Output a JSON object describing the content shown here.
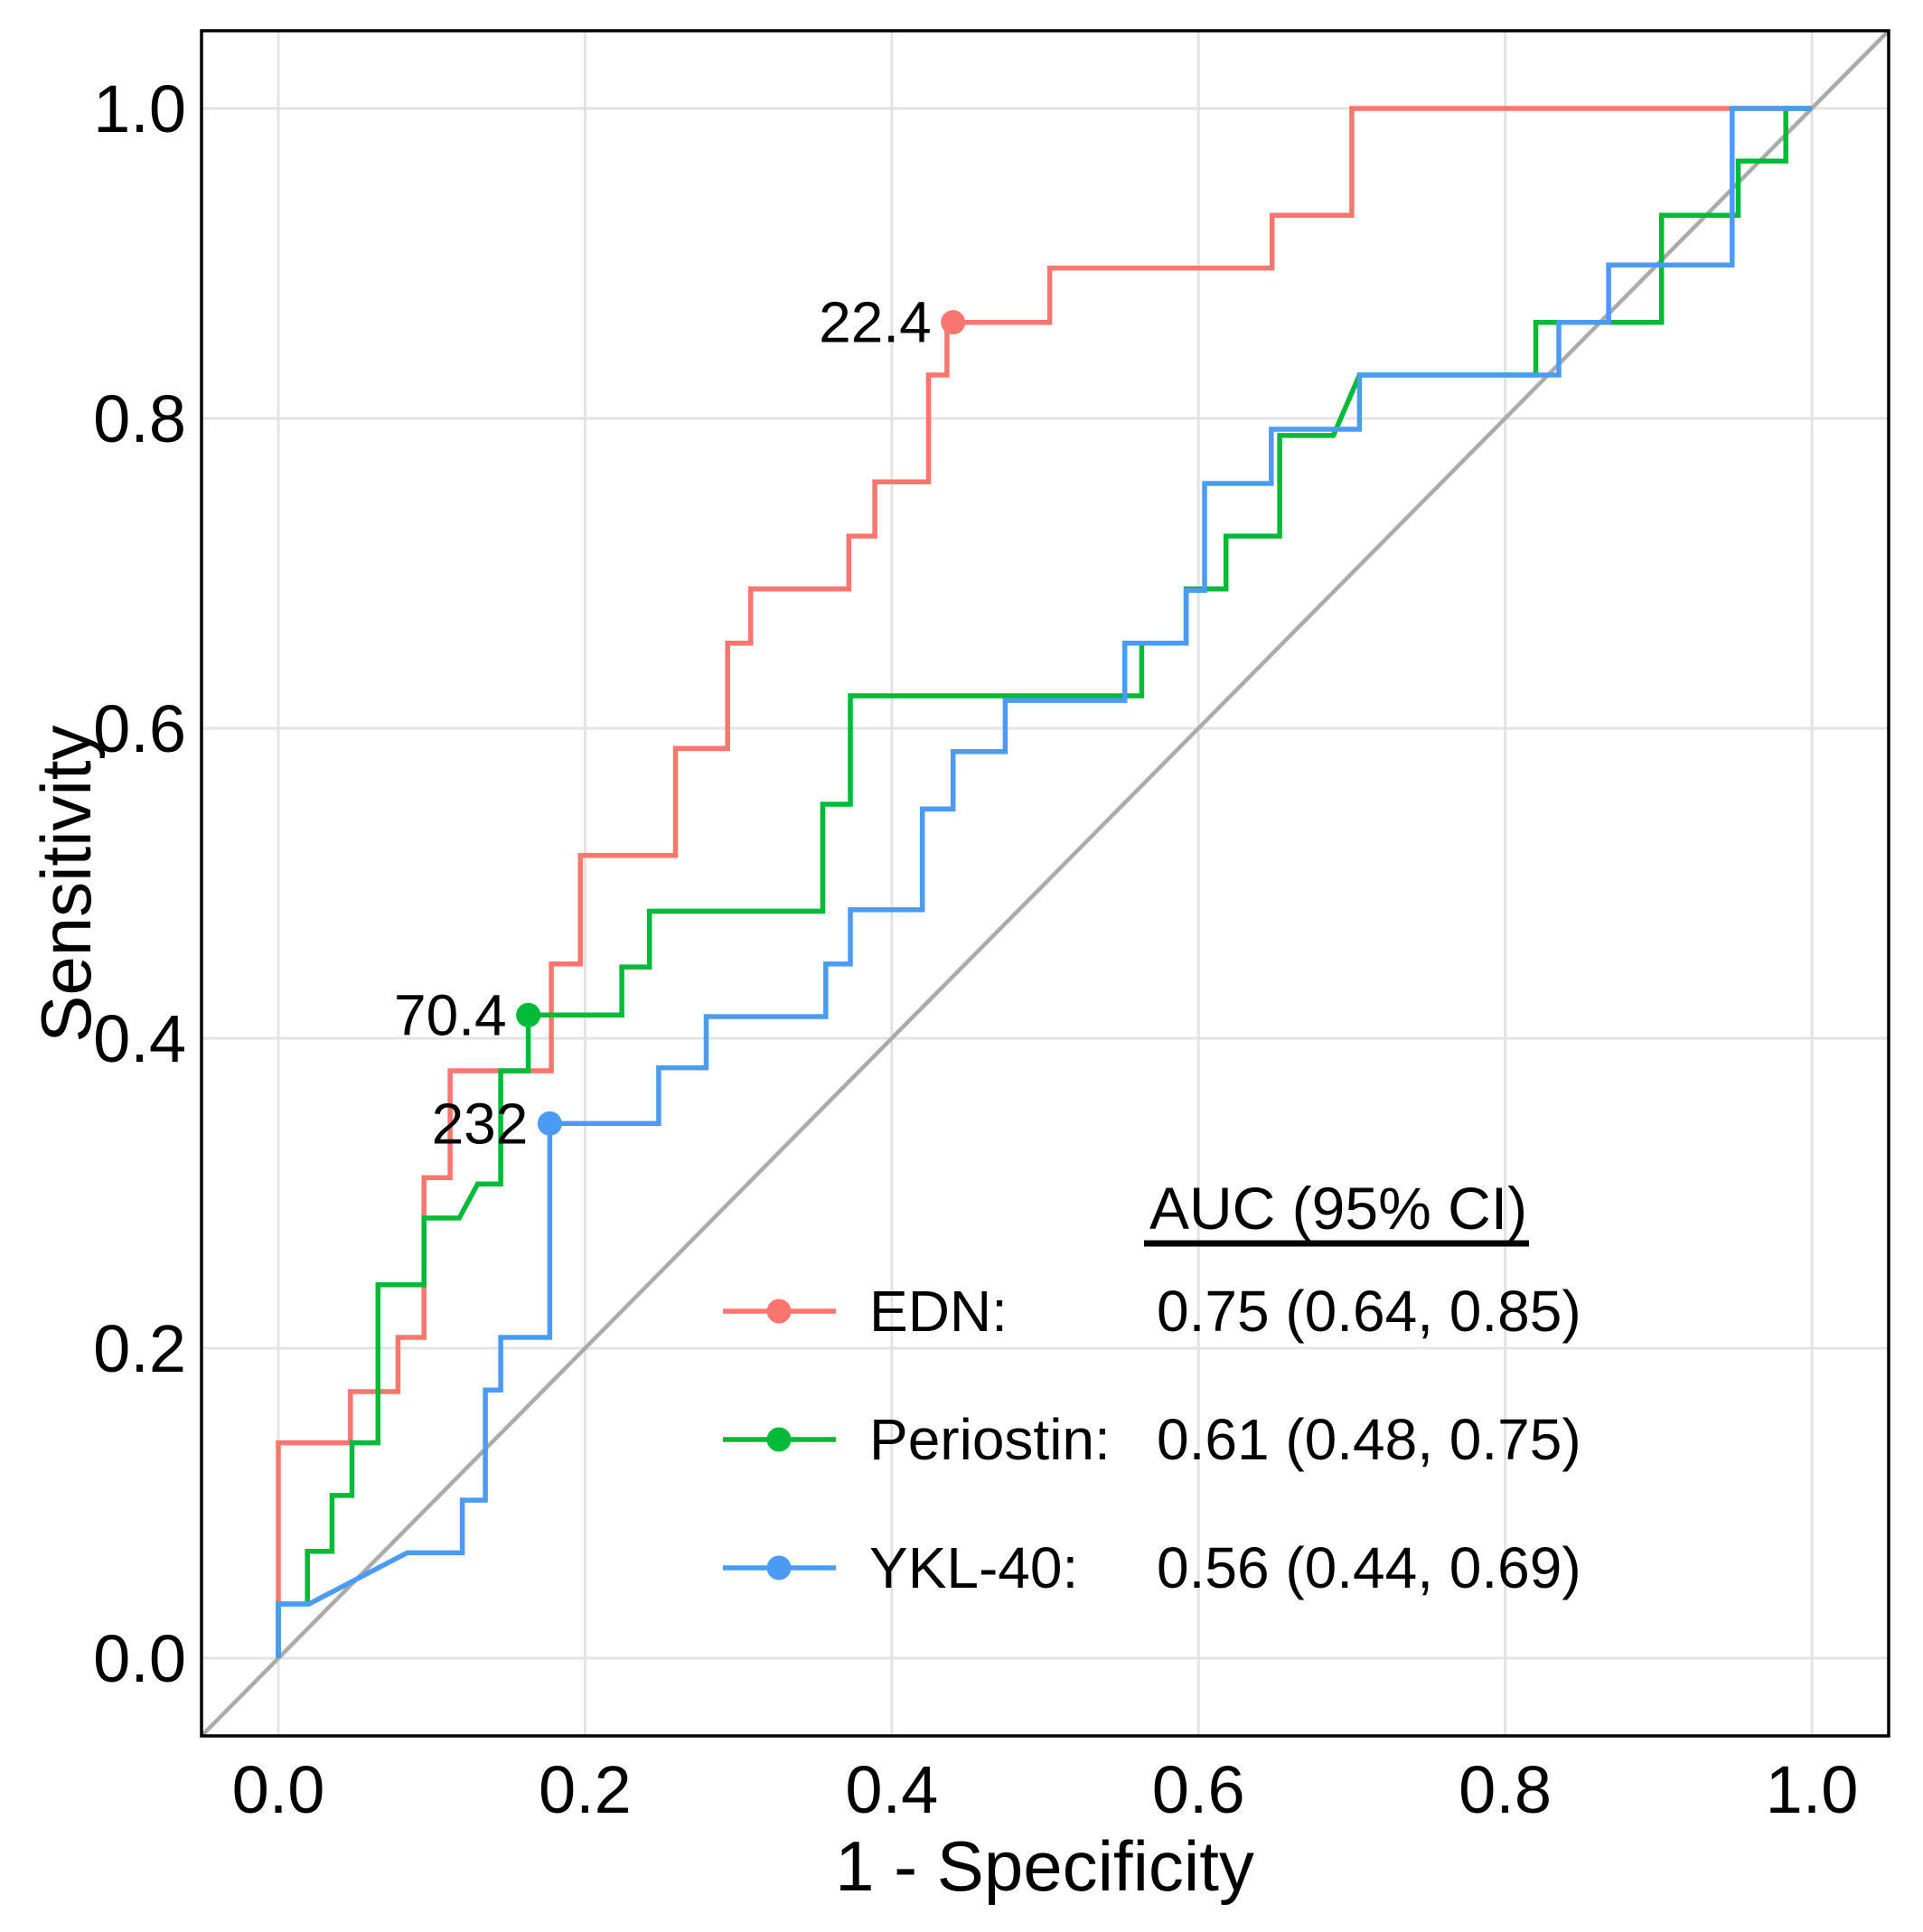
{
  "axis": {
    "x_ticks": [
      "0.0",
      "0.2",
      "0.4",
      "0.6",
      "0.8",
      "1.0"
    ],
    "y_ticks": [
      "0.0",
      "0.2",
      "0.4",
      "0.6",
      "0.8",
      "1.0"
    ],
    "x_label": "1 - Specificity",
    "y_label": "Sensitivity"
  },
  "legend": {
    "header": "AUC (95% CI)",
    "rows": [
      {
        "label": "EDN:",
        "value": "0.75 (0.64, 0.85)"
      },
      {
        "label": "Periostin:",
        "value": "0.61 (0.48, 0.75)"
      },
      {
        "label": "YKL-40:",
        "value": "0.56 (0.44, 0.69)"
      }
    ]
  },
  "chart_data": {
    "type": "line",
    "subtype": "roc-step-curves",
    "title": "",
    "xlabel": "1 - Specificity",
    "ylabel": "Sensitivity",
    "xlim": [
      0,
      1
    ],
    "ylim": [
      0,
      1
    ],
    "grid": "major-only",
    "diagonal_reference": true,
    "legend_position": "inside-bottom-right",
    "x_tick_values": [
      0,
      0.2,
      0.4,
      0.6,
      0.8,
      1.0
    ],
    "y_tick_values": [
      0,
      0.2,
      0.4,
      0.6,
      0.8,
      1.0
    ],
    "colors": {
      "diagonal": "#ABABAB",
      "grid": "#E3E3E3",
      "panel_border": "#000000",
      "background": "#FFFFFF"
    },
    "series": [
      {
        "name": "EDN",
        "color": "#F8766D",
        "auc": 0.75,
        "ci_low": 0.64,
        "ci_high": 0.85,
        "cutoff": {
          "label": "22.4",
          "x": 0.44,
          "y": 0.862
        },
        "points": [
          [
            0,
            0
          ],
          [
            0,
            0.139
          ],
          [
            0.047,
            0.139
          ],
          [
            0.047,
            0.172
          ],
          [
            0.078,
            0.172
          ],
          [
            0.078,
            0.207
          ],
          [
            0.095,
            0.207
          ],
          [
            0.095,
            0.31
          ],
          [
            0.112,
            0.31
          ],
          [
            0.112,
            0.379
          ],
          [
            0.178,
            0.379
          ],
          [
            0.178,
            0.448
          ],
          [
            0.197,
            0.448
          ],
          [
            0.197,
            0.518
          ],
          [
            0.259,
            0.518
          ],
          [
            0.259,
            0.587
          ],
          [
            0.293,
            0.587
          ],
          [
            0.293,
            0.655
          ],
          [
            0.308,
            0.655
          ],
          [
            0.308,
            0.69
          ],
          [
            0.372,
            0.69
          ],
          [
            0.372,
            0.724
          ],
          [
            0.389,
            0.724
          ],
          [
            0.389,
            0.759
          ],
          [
            0.424,
            0.759
          ],
          [
            0.424,
            0.828
          ],
          [
            0.436,
            0.828
          ],
          [
            0.436,
            0.862
          ],
          [
            0.503,
            0.862
          ],
          [
            0.503,
            0.897
          ],
          [
            0.648,
            0.897
          ],
          [
            0.648,
            0.931
          ],
          [
            0.7,
            0.931
          ],
          [
            0.7,
            1
          ],
          [
            1,
            1
          ]
        ]
      },
      {
        "name": "Periostin",
        "color": "#00BA38",
        "auc": 0.61,
        "ci_low": 0.48,
        "ci_high": 0.75,
        "cutoff": {
          "label": "70.4",
          "x": 0.163,
          "y": 0.415
        },
        "points": [
          [
            0,
            0
          ],
          [
            0,
            0.035
          ],
          [
            0.019,
            0.035
          ],
          [
            0.019,
            0.069
          ],
          [
            0.035,
            0.069
          ],
          [
            0.035,
            0.105
          ],
          [
            0.048,
            0.105
          ],
          [
            0.048,
            0.139
          ],
          [
            0.065,
            0.139
          ],
          [
            0.065,
            0.241
          ],
          [
            0.095,
            0.241
          ],
          [
            0.095,
            0.284
          ],
          [
            0.118,
            0.284
          ],
          [
            0.13,
            0.306
          ],
          [
            0.145,
            0.306
          ],
          [
            0.145,
            0.379
          ],
          [
            0.163,
            0.379
          ],
          [
            0.163,
            0.415
          ],
          [
            0.224,
            0.415
          ],
          [
            0.224,
            0.446
          ],
          [
            0.242,
            0.446
          ],
          [
            0.242,
            0.482
          ],
          [
            0.355,
            0.482
          ],
          [
            0.355,
            0.551
          ],
          [
            0.373,
            0.551
          ],
          [
            0.373,
            0.621
          ],
          [
            0.563,
            0.621
          ],
          [
            0.563,
            0.655
          ],
          [
            0.592,
            0.655
          ],
          [
            0.592,
            0.69
          ],
          [
            0.618,
            0.69
          ],
          [
            0.618,
            0.724
          ],
          [
            0.653,
            0.724
          ],
          [
            0.653,
            0.789
          ],
          [
            0.688,
            0.789
          ],
          [
            0.705,
            0.828
          ],
          [
            0.82,
            0.828
          ],
          [
            0.82,
            0.862
          ],
          [
            0.902,
            0.862
          ],
          [
            0.902,
            0.931
          ],
          [
            0.952,
            0.931
          ],
          [
            0.952,
            0.966
          ],
          [
            0.983,
            0.966
          ],
          [
            0.983,
            1
          ],
          [
            1,
            1
          ]
        ]
      },
      {
        "name": "YKL-40",
        "color": "#4B9BF5",
        "auc": 0.56,
        "ci_low": 0.44,
        "ci_high": 0.69,
        "cutoff": {
          "label": "232",
          "x": 0.177,
          "y": 0.345
        },
        "points": [
          [
            0,
            0
          ],
          [
            0,
            0.035
          ],
          [
            0.02,
            0.035
          ],
          [
            0.084,
            0.068
          ],
          [
            0.12,
            0.068
          ],
          [
            0.12,
            0.102
          ],
          [
            0.135,
            0.102
          ],
          [
            0.135,
            0.173
          ],
          [
            0.145,
            0.173
          ],
          [
            0.145,
            0.207
          ],
          [
            0.177,
            0.207
          ],
          [
            0.177,
            0.345
          ],
          [
            0.248,
            0.345
          ],
          [
            0.248,
            0.381
          ],
          [
            0.279,
            0.381
          ],
          [
            0.279,
            0.414
          ],
          [
            0.357,
            0.414
          ],
          [
            0.357,
            0.448
          ],
          [
            0.373,
            0.448
          ],
          [
            0.373,
            0.483
          ],
          [
            0.42,
            0.483
          ],
          [
            0.42,
            0.548
          ],
          [
            0.44,
            0.548
          ],
          [
            0.44,
            0.585
          ],
          [
            0.474,
            0.585
          ],
          [
            0.474,
            0.618
          ],
          [
            0.552,
            0.618
          ],
          [
            0.552,
            0.655
          ],
          [
            0.592,
            0.655
          ],
          [
            0.592,
            0.689
          ],
          [
            0.604,
            0.689
          ],
          [
            0.604,
            0.758
          ],
          [
            0.6475,
            0.758
          ],
          [
            0.6475,
            0.793
          ],
          [
            0.705,
            0.793
          ],
          [
            0.705,
            0.828
          ],
          [
            0.835,
            0.828
          ],
          [
            0.835,
            0.862
          ],
          [
            0.8675,
            0.862
          ],
          [
            0.8675,
            0.899
          ],
          [
            0.948,
            0.899
          ],
          [
            0.948,
            1
          ],
          [
            1,
            1
          ]
        ]
      }
    ]
  }
}
